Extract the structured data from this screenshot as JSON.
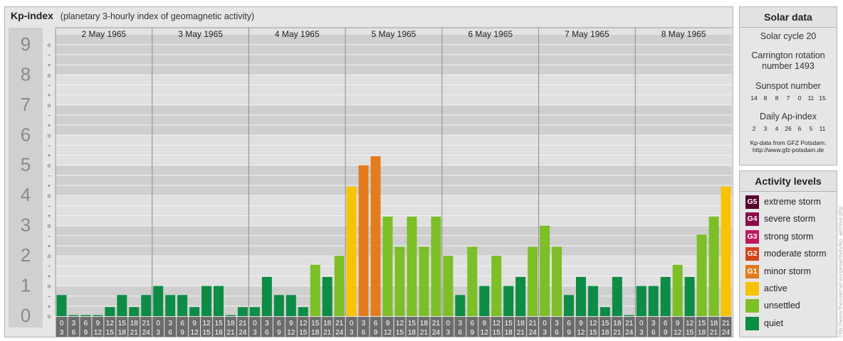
{
  "header": {
    "title": "Kp-index",
    "subtitle": "(planetary 3-hourly index of geomagnetic activity)"
  },
  "chart_data": {
    "type": "bar",
    "title": "Kp-index",
    "subtitle": "(planetary 3-hourly index of geomagnetic activity)",
    "ylim": [
      0,
      9
    ],
    "yticks": [
      "0",
      "1",
      "2",
      "3",
      "4",
      "5",
      "6",
      "7",
      "8",
      "9"
    ],
    "subticks": [
      "o",
      "+",
      "–"
    ],
    "days": [
      "2 May 1965",
      "3 May 1965",
      "4 May 1965",
      "5 May 1965",
      "6 May 1965",
      "7 May 1965",
      "8 May 1965"
    ],
    "interval_labels": [
      [
        "0",
        "3"
      ],
      [
        "3",
        "6"
      ],
      [
        "6",
        "9"
      ],
      [
        "9",
        "12"
      ],
      [
        "12",
        "15"
      ],
      [
        "15",
        "18"
      ],
      [
        "18",
        "21"
      ],
      [
        "21",
        "24"
      ]
    ],
    "values": [
      [
        0.7,
        0.0,
        0.0,
        0.0,
        0.3,
        0.7,
        0.3,
        0.7
      ],
      [
        1.0,
        0.7,
        0.7,
        0.3,
        1.0,
        1.0,
        0.0,
        0.3
      ],
      [
        0.3,
        1.3,
        0.7,
        0.7,
        0.3,
        1.7,
        1.3,
        2.0
      ],
      [
        4.3,
        5.0,
        5.3,
        3.3,
        2.3,
        3.3,
        2.3,
        3.3
      ],
      [
        2.0,
        0.7,
        2.3,
        1.0,
        2.0,
        1.0,
        1.3,
        2.3
      ],
      [
        3.0,
        2.3,
        0.7,
        1.3,
        1.0,
        0.3,
        1.3,
        0.0
      ],
      [
        1.0,
        1.0,
        1.3,
        1.7,
        1.3,
        2.7,
        3.3,
        4.3
      ]
    ],
    "level_colors": {
      "quiet": "#0c8c45",
      "unsettled": "#7cbf26",
      "active": "#f8c300",
      "minor": "#e27c1e",
      "moderate": "#d4421c",
      "strong": "#c0185c",
      "severe": "#8a0b4a",
      "extreme": "#55002c"
    },
    "grid": true,
    "legend": "right"
  },
  "solar": {
    "title": "Solar data",
    "cycle": "Solar cycle 20",
    "carrington_line1": "Carrington rotation",
    "carrington_line2": "number 1493",
    "sunspot_title": "Sunspot number",
    "sunspot_values": [
      "14",
      "8",
      "8",
      "7",
      "0",
      "11",
      "15"
    ],
    "ap_title": "Daily Ap-index",
    "ap_values": [
      "2",
      "3",
      "4",
      "26",
      "6",
      "5",
      "11"
    ],
    "source_line1": "Kp-data from GFZ Potsdam:",
    "source_line2": "http://www.gfz-potsdam.de"
  },
  "levels": {
    "title": "Activity levels",
    "items": [
      {
        "badge": "G5",
        "label": "extreme storm",
        "color": "#55002c"
      },
      {
        "badge": "G4",
        "label": "severe storm",
        "color": "#8a0b4a"
      },
      {
        "badge": "G3",
        "label": "strong storm",
        "color": "#c0185c"
      },
      {
        "badge": "G2",
        "label": "moderate storm",
        "color": "#d4421c"
      },
      {
        "badge": "G1",
        "label": "minor storm",
        "color": "#e27c1e"
      },
      {
        "badge": "",
        "label": "active",
        "color": "#f8c300"
      },
      {
        "badge": "",
        "label": "unsettled",
        "color": "#7cbf26"
      },
      {
        "badge": "",
        "label": "quiet",
        "color": "#0c8c45"
      }
    ]
  },
  "watermark": "http://www.theusernet.eu/geoactivity/kp_archive.php"
}
